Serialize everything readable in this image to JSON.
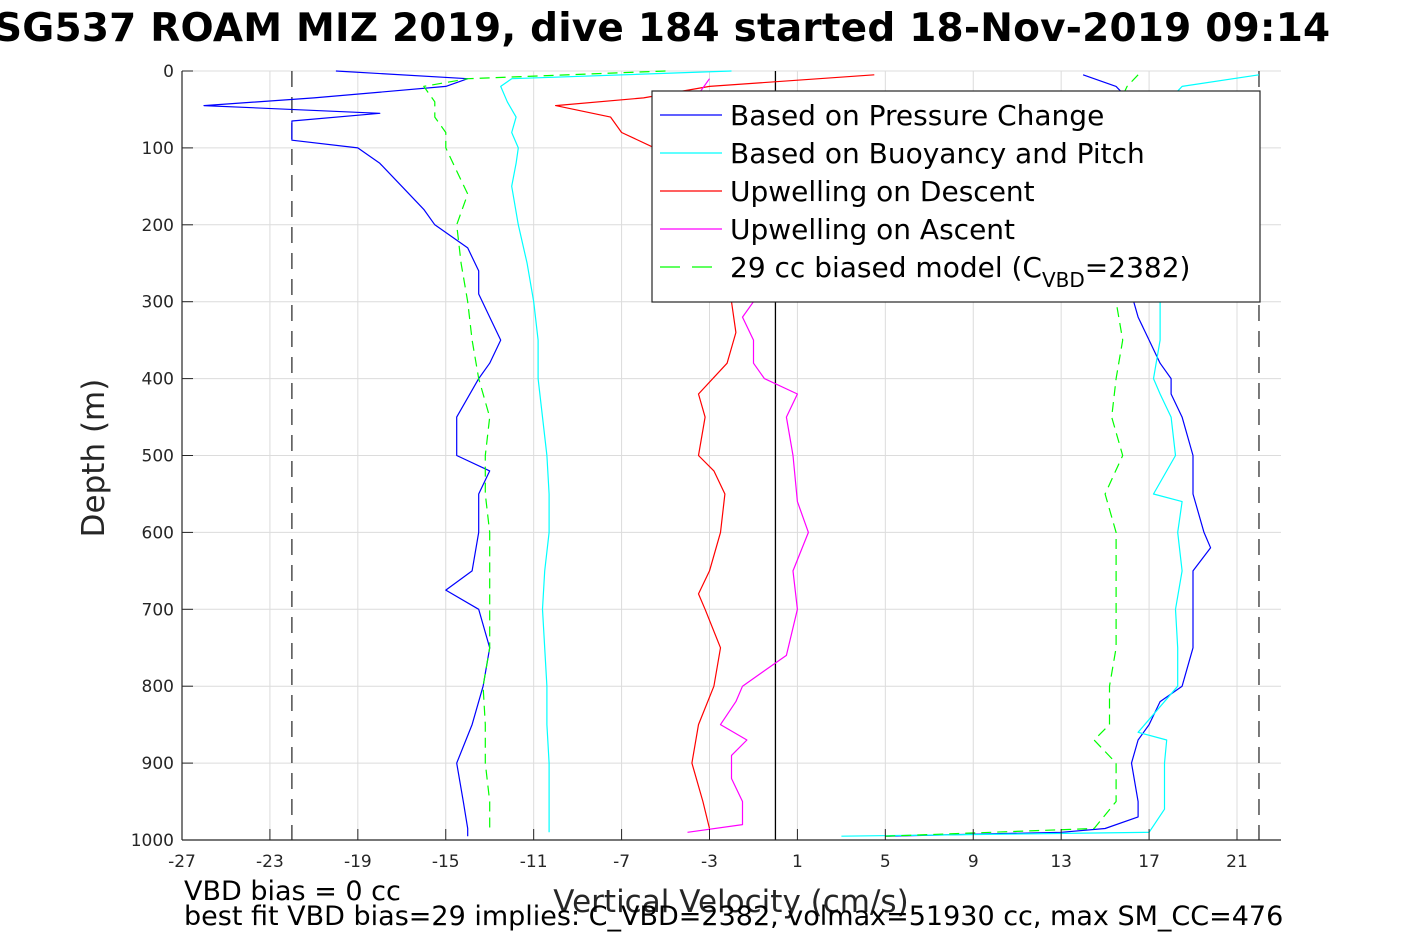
{
  "title": "SG537 ROAM MIZ 2019, dive 184 started 18-Nov-2019 09:14",
  "footer": {
    "line1": "VBD bias = 0 cc",
    "line2": "best fit VBD bias=29 implies: C_VBD=2382, volmax=51930 cc, max SM_CC=476"
  },
  "chart_data": {
    "type": "line",
    "title": "SG537 ROAM MIZ 2019, dive 184 started 18-Nov-2019 09:14",
    "xlabel": "Vertical Velocity (cm/s)",
    "ylabel": "Depth (m)",
    "xlim": [
      -27,
      23
    ],
    "ylim": [
      0,
      1000
    ],
    "y_reversed": true,
    "xticks": [
      -27,
      -23,
      -19,
      -15,
      -11,
      -7,
      -3,
      1,
      5,
      9,
      13,
      17,
      21
    ],
    "yticks": [
      0,
      100,
      200,
      300,
      400,
      500,
      600,
      700,
      800,
      900,
      1000
    ],
    "grid": true,
    "legend_position": "top-right",
    "reference_lines": [
      {
        "x": 0,
        "style": "solid",
        "color": "#000000"
      },
      {
        "x": -22,
        "style": "dashed",
        "color": "#000000"
      },
      {
        "x": 22,
        "style": "dashed",
        "color": "#000000"
      }
    ],
    "series": [
      {
        "name": "Based on Pressure Change",
        "color": "#0000ff",
        "style": "solid",
        "segment": "descent",
        "depth": [
          0,
          10,
          20,
          35,
          45,
          55,
          65,
          75,
          90,
          100,
          120,
          150,
          180,
          200,
          230,
          260,
          290,
          320,
          350,
          380,
          400,
          450,
          500,
          520,
          550,
          600,
          650,
          675,
          700,
          750,
          800,
          850,
          900,
          950,
          985,
          995
        ],
        "values": [
          -20,
          -14,
          -15,
          -21,
          -26,
          -18,
          -22,
          -22,
          -22,
          -19,
          -18,
          -17,
          -16,
          -15.5,
          -14,
          -13.5,
          -13.5,
          -13,
          -12.5,
          -13,
          -13.5,
          -14.5,
          -14.5,
          -13,
          -13.5,
          -13.5,
          -13.8,
          -15,
          -13.5,
          -13,
          -13.3,
          -13.8,
          -14.5,
          -14.2,
          -14,
          -14
        ]
      },
      {
        "name": "Based on Pressure Change (ascent)",
        "color": "#0000ff",
        "style": "solid",
        "segment": "ascent",
        "depth": [
          995,
          990,
          985,
          970,
          950,
          900,
          870,
          850,
          820,
          800,
          750,
          700,
          650,
          620,
          600,
          550,
          500,
          450,
          420,
          400,
          380,
          350,
          320,
          300,
          50,
          20,
          5
        ],
        "values": [
          5,
          13,
          15,
          16.5,
          16.5,
          16.2,
          16.5,
          17,
          17.5,
          18.5,
          19,
          19,
          19,
          19.8,
          19.5,
          19,
          19,
          18.5,
          18,
          18,
          17.5,
          17,
          16.5,
          16.3,
          16.5,
          15.5,
          14
        ]
      },
      {
        "name": "Based on Buoyancy and Pitch",
        "color": "#00ffff",
        "style": "solid",
        "segment": "descent",
        "depth": [
          0,
          10,
          20,
          40,
          60,
          80,
          100,
          120,
          150,
          200,
          250,
          300,
          350,
          400,
          450,
          500,
          550,
          600,
          650,
          700,
          750,
          800,
          850,
          900,
          950,
          990
        ],
        "values": [
          -2,
          -12,
          -12.5,
          -12.2,
          -11.8,
          -12,
          -11.7,
          -11.8,
          -12,
          -11.7,
          -11.3,
          -11,
          -10.8,
          -10.8,
          -10.6,
          -10.4,
          -10.3,
          -10.3,
          -10.5,
          -10.6,
          -10.5,
          -10.4,
          -10.4,
          -10.3,
          -10.3,
          -10.3
        ]
      },
      {
        "name": "Based on Buoyancy and Pitch (ascent)",
        "color": "#00ffff",
        "style": "solid",
        "segment": "ascent",
        "depth": [
          995,
          990,
          960,
          900,
          870,
          860,
          800,
          750,
          700,
          650,
          600,
          560,
          550,
          500,
          450,
          420,
          400,
          350,
          300,
          50,
          20,
          5
        ],
        "values": [
          3,
          17,
          17.7,
          17.7,
          17.8,
          16.5,
          18.3,
          18.3,
          18.2,
          18.5,
          18.3,
          18.5,
          17.2,
          18.2,
          18,
          17.5,
          17.2,
          17.5,
          17.5,
          17.5,
          18.5,
          22
        ]
      },
      {
        "name": "Upwelling on Descent",
        "color": "#ff0000",
        "style": "solid",
        "segment": "descent",
        "depth": [
          5,
          20,
          35,
          45,
          60,
          80,
          100,
          130,
          160,
          200,
          250,
          300,
          340,
          380,
          420,
          450,
          500,
          520,
          550,
          600,
          650,
          680,
          700,
          750,
          800,
          850,
          900,
          950,
          985
        ],
        "values": [
          4.5,
          -3,
          -6,
          -10,
          -7.5,
          -7,
          -5.5,
          -4.5,
          -4,
          -3.5,
          -2.5,
          -2,
          -1.8,
          -2.2,
          -3.5,
          -3.2,
          -3.5,
          -2.8,
          -2.3,
          -2.5,
          -3,
          -3.5,
          -3.2,
          -2.5,
          -2.8,
          -3.5,
          -3.8,
          -3.3,
          -3
        ]
      },
      {
        "name": "Upwelling on Ascent",
        "color": "#ff00ff",
        "style": "solid",
        "segment": "ascent",
        "depth": [
          990,
          980,
          950,
          920,
          890,
          870,
          850,
          820,
          800,
          780,
          760,
          700,
          650,
          600,
          560,
          500,
          450,
          420,
          400,
          380,
          350,
          320,
          300,
          50,
          30,
          10
        ],
        "values": [
          -4,
          -1.5,
          -1.5,
          -2,
          -2,
          -1.3,
          -2.5,
          -1.8,
          -1.5,
          -0.5,
          0.5,
          1,
          0.8,
          1.5,
          1,
          0.8,
          0.5,
          1,
          -0.5,
          -1,
          -1,
          -1.5,
          -1,
          -1.5,
          -3.5,
          -3
        ]
      },
      {
        "name": "29 cc biased model (C_VBD=2382)",
        "legend_label": "29 cc biased model (C",
        "legend_sub": "VBD",
        "legend_tail": "=2382)",
        "color": "#00ff00",
        "style": "dashed",
        "segment": "descent",
        "depth": [
          0,
          10,
          20,
          40,
          60,
          80,
          100,
          130,
          160,
          200,
          250,
          300,
          350,
          400,
          450,
          500,
          550,
          600,
          650,
          700,
          750,
          800,
          850,
          900,
          950,
          990
        ],
        "values": [
          -5,
          -14,
          -16,
          -15.5,
          -15.5,
          -15,
          -15,
          -14.5,
          -14,
          -14.5,
          -14.3,
          -14,
          -13.8,
          -13.5,
          -13,
          -13.2,
          -13.2,
          -13,
          -13,
          -13,
          -13,
          -13.3,
          -13.2,
          -13.2,
          -13,
          -13
        ]
      },
      {
        "name": "29 cc biased model (ascent)",
        "color": "#00ff00",
        "style": "dashed",
        "segment": "ascent",
        "depth": [
          995,
          985,
          950,
          900,
          870,
          850,
          800,
          750,
          700,
          650,
          600,
          550,
          500,
          450,
          400,
          350,
          300,
          50,
          20,
          5
        ],
        "values": [
          5,
          14.5,
          15.5,
          15.5,
          14.5,
          15.2,
          15.2,
          15.5,
          15.5,
          15.5,
          15.5,
          15,
          15.8,
          15.3,
          15.5,
          15.8,
          15.5,
          15.5,
          16,
          16.5
        ]
      }
    ],
    "legend": [
      {
        "label": "Based on Pressure Change",
        "color": "#0000ff",
        "style": "solid"
      },
      {
        "label": "Based on Buoyancy and Pitch",
        "color": "#00ffff",
        "style": "solid"
      },
      {
        "label": "Upwelling on Descent",
        "color": "#ff0000",
        "style": "solid"
      },
      {
        "label": "Upwelling on Ascent",
        "color": "#ff00ff",
        "style": "solid"
      },
      {
        "label": "29 cc biased model (C",
        "sub": "VBD",
        "tail": "=2382)",
        "color": "#00ff00",
        "style": "dashed"
      }
    ]
  }
}
